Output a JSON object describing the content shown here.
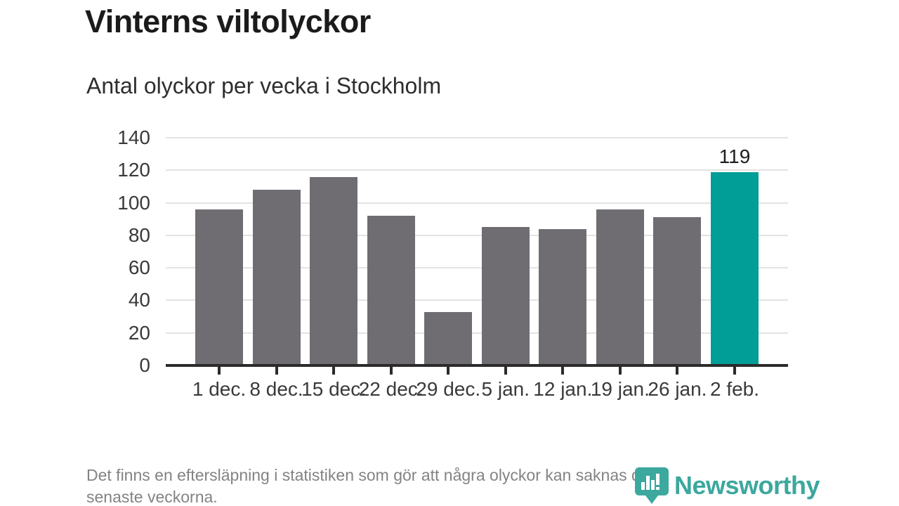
{
  "header": {
    "title": "Vinterns viltolyckor",
    "subtitle": "Antal olyckor per vecka i Stockholm"
  },
  "footer": {
    "note_lines": [
      "Det finns en eftersläpning i statistiken som gör att några olyckor kan saknas de",
      "senaste veckorna."
    ],
    "logo_text": "Newsworthy"
  },
  "colors": {
    "bar": "#6f6d72",
    "highlight": "#009e96",
    "axis": "#2b2b2b",
    "gridline": "#e3e3e3",
    "logo_teal": "#3ca89e",
    "text_dark": "#1b1b1b",
    "text_axis": "#3a3a3a",
    "text_note": "#838383"
  },
  "chart_data": {
    "type": "bar",
    "title": "Vinterns viltolyckor",
    "subtitle": "Antal olyckor per vecka i Stockholm",
    "categories": [
      "1 dec.",
      "8 dec.",
      "15 dec.",
      "22 dec.",
      "29 dec.",
      "5 jan.",
      "12 jan.",
      "19 jan.",
      "26 jan.",
      "2 feb."
    ],
    "values": [
      96,
      108,
      116,
      92,
      33,
      85,
      84,
      96,
      91,
      119
    ],
    "highlight_index": 9,
    "value_label": {
      "index": 9,
      "text": "119"
    },
    "xlabel": "",
    "ylabel": "",
    "ylim": [
      0,
      140
    ],
    "yticks": [
      0,
      20,
      40,
      60,
      80,
      100,
      120,
      140
    ],
    "grid": true,
    "legend": "none"
  }
}
